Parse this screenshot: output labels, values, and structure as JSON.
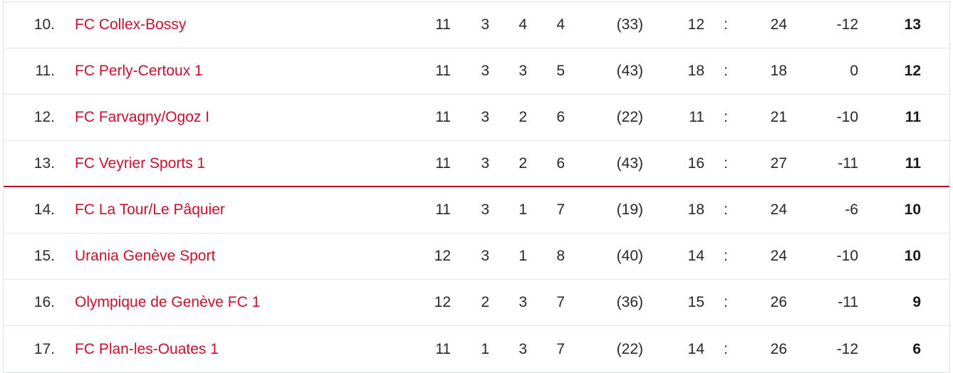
{
  "colors": {
    "team_link": "#c8102e",
    "relegation_line": "#b3121f",
    "row_border": "#e4e6e9",
    "frame_border": "#dee2e6",
    "number_text": "#24282e",
    "points_text": "#16191e",
    "background": "#ffffff"
  },
  "table": {
    "separator": ":",
    "relegation_line_after_rank": "13.",
    "rows": [
      {
        "rank": "10.",
        "team": "FC Collex-Bossy",
        "played": "11",
        "won": "3",
        "drawn": "4",
        "lost": "4",
        "scorers": "(33)",
        "goals_for": "12",
        "goals_against": "24",
        "diff": "-12",
        "points": "13"
      },
      {
        "rank": "11.",
        "team": "FC Perly-Certoux 1",
        "played": "11",
        "won": "3",
        "drawn": "3",
        "lost": "5",
        "scorers": "(43)",
        "goals_for": "18",
        "goals_against": "18",
        "diff": "0",
        "points": "12"
      },
      {
        "rank": "12.",
        "team": "FC Farvagny/Ogoz I",
        "played": "11",
        "won": "3",
        "drawn": "2",
        "lost": "6",
        "scorers": "(22)",
        "goals_for": "11",
        "goals_against": "21",
        "diff": "-10",
        "points": "11"
      },
      {
        "rank": "13.",
        "team": "FC Veyrier Sports 1",
        "played": "11",
        "won": "3",
        "drawn": "2",
        "lost": "6",
        "scorers": "(43)",
        "goals_for": "16",
        "goals_against": "27",
        "diff": "-11",
        "points": "11"
      },
      {
        "rank": "14.",
        "team": "FC La Tour/Le Pâquier",
        "played": "11",
        "won": "3",
        "drawn": "1",
        "lost": "7",
        "scorers": "(19)",
        "goals_for": "18",
        "goals_against": "24",
        "diff": "-6",
        "points": "10"
      },
      {
        "rank": "15.",
        "team": "Urania Genève Sport",
        "played": "12",
        "won": "3",
        "drawn": "1",
        "lost": "8",
        "scorers": "(40)",
        "goals_for": "14",
        "goals_against": "24",
        "diff": "-10",
        "points": "10"
      },
      {
        "rank": "16.",
        "team": "Olympique de Genève FC 1",
        "played": "12",
        "won": "2",
        "drawn": "3",
        "lost": "7",
        "scorers": "(36)",
        "goals_for": "15",
        "goals_against": "26",
        "diff": "-11",
        "points": "9"
      },
      {
        "rank": "17.",
        "team": "FC Plan-les-Ouates 1",
        "played": "11",
        "won": "1",
        "drawn": "3",
        "lost": "7",
        "scorers": "(22)",
        "goals_for": "14",
        "goals_against": "26",
        "diff": "-12",
        "points": "6"
      }
    ]
  }
}
